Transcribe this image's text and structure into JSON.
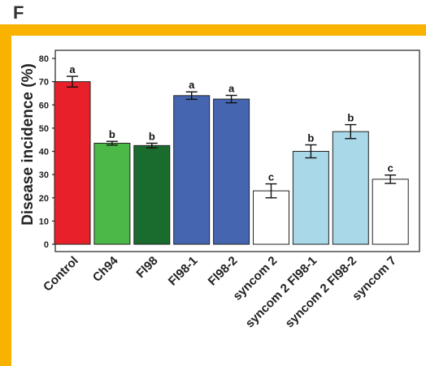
{
  "panel": {
    "letter": "F"
  },
  "colors": {
    "frame_accent": "#F9B200",
    "axis": "#222222",
    "bar_outline": "#222222"
  },
  "chart_data": {
    "type": "bar",
    "title": "",
    "xlabel": "",
    "ylabel": "Disease incidence (%)",
    "ylim": [
      0,
      80
    ],
    "yticks": [
      0,
      10,
      20,
      30,
      40,
      50,
      60,
      70,
      80
    ],
    "categories": [
      "Control",
      "Ch94",
      "Fl98",
      "Fl98-1",
      "Fl98-2",
      "syncom 2",
      "syncom 2 Fl98-1",
      "syncom 2 Fl98-2",
      "syncom 7"
    ],
    "values": [
      70,
      43.5,
      42.5,
      64,
      62.5,
      23,
      40,
      48.5,
      28
    ],
    "errors": [
      2.3,
      0.8,
      1.0,
      1.6,
      1.6,
      3.0,
      2.8,
      3.0,
      1.8
    ],
    "significance_letters": [
      "a",
      "b",
      "b",
      "a",
      "a",
      "c",
      "b",
      "b",
      "c"
    ],
    "bar_colors": [
      "#E8202A",
      "#4CB848",
      "#1A6B2E",
      "#4665B0",
      "#4665B0",
      "#FFFFFF",
      "#A9D8E8",
      "#A9D8E8",
      "#FFFFFF"
    ],
    "grid": false,
    "legend": "none"
  }
}
